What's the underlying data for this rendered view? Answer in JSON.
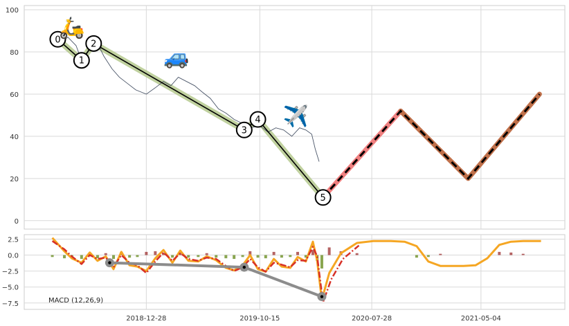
{
  "chart_data": [
    {
      "type": "line",
      "ylim": [
        -4,
        102
      ],
      "yticks": [
        0,
        20,
        40,
        60,
        80,
        100
      ],
      "price_series": {
        "x": [
          "2018-05-01",
          "2018-05-20",
          "2018-06-10",
          "2018-07-01",
          "2018-07-15",
          "2018-08-01",
          "2018-08-20",
          "2018-09-10",
          "2018-10-01",
          "2018-10-20",
          "2018-11-10",
          "2018-12-01",
          "2018-12-28",
          "2019-01-20",
          "2019-02-10",
          "2019-03-01",
          "2019-03-20",
          "2019-04-10",
          "2019-05-01",
          "2019-05-20",
          "2019-06-10",
          "2019-07-01",
          "2019-07-20",
          "2019-08-10",
          "2019-09-01",
          "2019-09-20",
          "2019-10-15",
          "2019-11-05",
          "2019-11-25",
          "2019-12-15",
          "2020-01-05",
          "2020-01-25",
          "2020-02-10",
          "2020-02-25",
          "2020-03-05",
          "2020-03-15"
        ],
        "y": [
          86,
          84,
          87,
          83,
          76,
          80,
          86,
          78,
          72,
          68,
          65,
          62,
          60,
          63,
          66,
          64,
          68,
          66,
          64,
          61,
          58,
          53,
          51,
          48,
          46,
          44,
          45,
          42,
          44,
          43,
          40,
          44,
          43,
          41,
          34,
          28
        ]
      },
      "wave_points": [
        {
          "label": "0",
          "x": "2018-05-15",
          "y": 86
        },
        {
          "label": "1",
          "x": "2018-07-15",
          "y": 76
        },
        {
          "label": "2",
          "x": "2018-08-15",
          "y": 84
        },
        {
          "label": "3",
          "x": "2019-09-05",
          "y": 43
        },
        {
          "label": "4",
          "x": "2019-10-10",
          "y": 48
        },
        {
          "label": "5",
          "x": "2020-03-25",
          "y": 11
        }
      ],
      "projection_red": {
        "x": [
          "2020-03-25",
          "2020-10-10"
        ],
        "y": [
          11,
          52
        ]
      },
      "projection_brown": {
        "x": [
          "2020-10-10",
          "2021-04-01",
          "2021-10-01"
        ],
        "y": [
          52,
          20,
          60
        ]
      },
      "projection_dashed": {
        "x": [
          "2020-03-25",
          "2020-10-10",
          "2021-04-01",
          "2021-10-01"
        ],
        "y": [
          11,
          52,
          20,
          60
        ]
      },
      "icons": [
        {
          "name": "scooter-icon",
          "glyph": "🛵",
          "x": "2018-06-20",
          "y": 91
        },
        {
          "name": "car-icon",
          "glyph": "🚙",
          "x": "2019-03-15",
          "y": 77
        },
        {
          "name": "airplane-icon",
          "glyph": "✈️",
          "x": "2020-01-15",
          "y": 49
        }
      ]
    },
    {
      "type": "line",
      "label": "MACD (12,26,9)",
      "ylim": [
        -8.5,
        3.2
      ],
      "yticks": [
        2.5,
        0.0,
        -2.5,
        -5.0,
        -7.5
      ],
      "ytick_labels": [
        "2.5",
        "0.0",
        "−2.5",
        "−5.0",
        "−7.5"
      ],
      "macd": {
        "x": [
          "2018-05-01",
          "2018-06-01",
          "2018-06-20",
          "2018-07-15",
          "2018-08-05",
          "2018-08-25",
          "2018-09-15",
          "2018-10-05",
          "2018-10-25",
          "2018-11-15",
          "2018-12-05",
          "2018-12-28",
          "2019-01-20",
          "2019-02-10",
          "2019-03-05",
          "2019-03-25",
          "2019-04-15",
          "2019-05-10",
          "2019-06-01",
          "2019-06-25",
          "2019-07-20",
          "2019-08-10",
          "2019-09-01",
          "2019-09-20",
          "2019-10-10",
          "2019-10-30",
          "2019-11-20",
          "2019-12-10",
          "2020-01-01",
          "2020-01-20",
          "2020-02-10",
          "2020-02-28",
          "2020-03-10",
          "2020-03-22",
          "2020-04-10",
          "2020-05-10",
          "2020-06-20",
          "2020-08-01",
          "2020-09-15",
          "2020-10-20",
          "2020-11-20",
          "2020-12-20",
          "2021-01-20",
          "2021-02-20",
          "2021-03-20",
          "2021-04-20",
          "2021-05-20",
          "2021-06-20",
          "2021-07-20",
          "2021-08-20",
          "2021-09-20",
          "2021-10-05"
        ],
        "y": [
          2.7,
          0.6,
          -0.5,
          -1.2,
          0.4,
          -0.9,
          -0.2,
          -2.2,
          0.5,
          -1.6,
          -1.8,
          -2.5,
          -0.5,
          0.8,
          -1.2,
          0.7,
          -0.9,
          -1.0,
          -0.2,
          -0.8,
          -2.0,
          -2.4,
          -1.6,
          0.0,
          -2.2,
          -2.6,
          -0.6,
          -1.8,
          -2.0,
          -0.3,
          -1.0,
          2.1,
          -0.9,
          -7.0,
          -2.8,
          0.3,
          1.9,
          2.2,
          2.2,
          2.1,
          1.4,
          -1.0,
          -1.7,
          -1.7,
          -1.7,
          -1.6,
          -0.5,
          1.6,
          2.1,
          2.2,
          2.2,
          2.2
        ]
      },
      "signal": {
        "x": [
          "2018-05-01",
          "2018-06-01",
          "2018-06-20",
          "2018-07-15",
          "2018-08-05",
          "2018-08-25",
          "2018-09-15",
          "2018-10-05",
          "2018-10-25",
          "2018-11-15",
          "2018-12-05",
          "2018-12-28",
          "2019-01-20",
          "2019-02-10",
          "2019-03-05",
          "2019-03-25",
          "2019-04-15",
          "2019-05-10",
          "2019-06-01",
          "2019-06-25",
          "2019-07-20",
          "2019-08-10",
          "2019-09-01",
          "2019-09-20",
          "2019-10-10",
          "2019-10-30",
          "2019-11-20",
          "2019-12-10",
          "2020-01-01",
          "2020-01-20",
          "2020-02-10",
          "2020-02-28",
          "2020-03-10",
          "2020-03-25",
          "2020-04-15",
          "2020-05-15",
          "2020-06-25"
        ],
        "y": [
          2.2,
          0.9,
          -0.2,
          -1.4,
          0.0,
          -0.6,
          -0.4,
          -1.9,
          0.0,
          -1.2,
          -1.6,
          -2.8,
          -1.0,
          0.4,
          -0.9,
          0.3,
          -0.6,
          -0.9,
          -0.4,
          -0.6,
          -1.7,
          -2.5,
          -1.9,
          -0.6,
          -1.9,
          -2.6,
          -1.2,
          -1.5,
          -1.9,
          -0.8,
          -0.9,
          1.3,
          -0.2,
          -7.4,
          -3.8,
          -0.6,
          1.5
        ]
      },
      "histogram": {
        "x": [
          "2018-05-01",
          "2018-06-01",
          "2018-06-20",
          "2018-07-15",
          "2018-08-05",
          "2018-08-25",
          "2018-09-15",
          "2018-10-05",
          "2018-10-25",
          "2018-11-15",
          "2018-12-05",
          "2018-12-28",
          "2019-01-20",
          "2019-02-10",
          "2019-03-05",
          "2019-03-25",
          "2019-04-15",
          "2019-05-10",
          "2019-06-01",
          "2019-06-25",
          "2019-07-20",
          "2019-08-10",
          "2019-09-01",
          "2019-09-20",
          "2019-10-10",
          "2019-10-30",
          "2019-11-20",
          "2019-12-10",
          "2020-01-01",
          "2020-01-20",
          "2020-02-10",
          "2020-02-28",
          "2020-03-10",
          "2020-03-22",
          "2020-04-10",
          "2020-05-10",
          "2020-06-20",
          "2020-11-20",
          "2020-12-20",
          "2021-01-20",
          "2021-06-20",
          "2021-07-20",
          "2021-08-20"
        ],
        "y": [
          -0.3,
          -0.5,
          -0.4,
          -0.6,
          0.4,
          -0.5,
          0.3,
          -0.6,
          0.5,
          -0.4,
          -0.3,
          0.5,
          0.6,
          0.4,
          -0.4,
          0.4,
          -0.4,
          -0.3,
          0.3,
          -0.4,
          -0.5,
          -0.6,
          -0.3,
          0.6,
          -0.4,
          -0.5,
          0.5,
          -0.4,
          -0.3,
          0.5,
          -0.4,
          0.8,
          -0.9,
          -2.1,
          1.2,
          0.6,
          0.3,
          -0.4,
          -0.3,
          0.2,
          0.5,
          0.4,
          0.2
        ]
      },
      "macd_low_points": {
        "x": [
          "2018-09-25",
          "2019-09-05",
          "2020-03-22"
        ],
        "y": [
          -1.2,
          -1.9,
          -6.5
        ]
      }
    }
  ],
  "x_axis": {
    "range": [
      "2018-02-18",
      "2021-12-05"
    ],
    "ticks": [
      "2018-12-28",
      "2019-10-15",
      "2020-07-28",
      "2021-05-04"
    ]
  },
  "colors": {
    "price": "#4a5568",
    "wave_band": "#b5c98e",
    "wave_line": "#000000",
    "projection_red": "#f08080",
    "projection_brown": "#c0704a",
    "macd_line": "#f5a623",
    "signal_line": "#d73027",
    "hist_positive": "#a33c3c",
    "hist_negative": "#6b8e23",
    "low_points": "#8c8c8c"
  }
}
